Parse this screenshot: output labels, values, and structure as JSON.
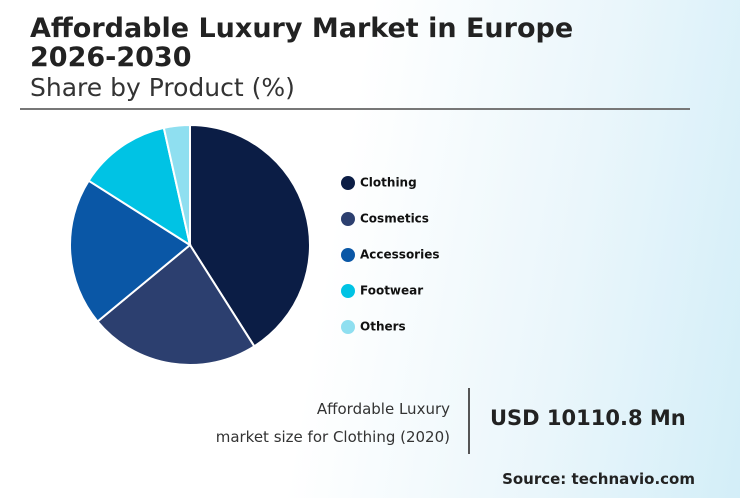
{
  "chart_data": {
    "type": "pie",
    "title": "Affordable Luxury Market in Europe 2026-2030",
    "subtitle": "Share by Product (%)",
    "categories": [
      "Clothing",
      "Cosmetics",
      "Accessories",
      "Footwear",
      "Others"
    ],
    "values": [
      41,
      23,
      20,
      12.5,
      3.5
    ],
    "colors": [
      "#0b1d45",
      "#2c3f6f",
      "#0a57a6",
      "#00c3e4",
      "#8fdff0"
    ]
  },
  "callout": {
    "label_lines": [
      "Affordable Luxury",
      "market size for Clothing (2020)"
    ],
    "value": "USD 10110.8 Mn"
  },
  "source": "Source: technavio.com"
}
